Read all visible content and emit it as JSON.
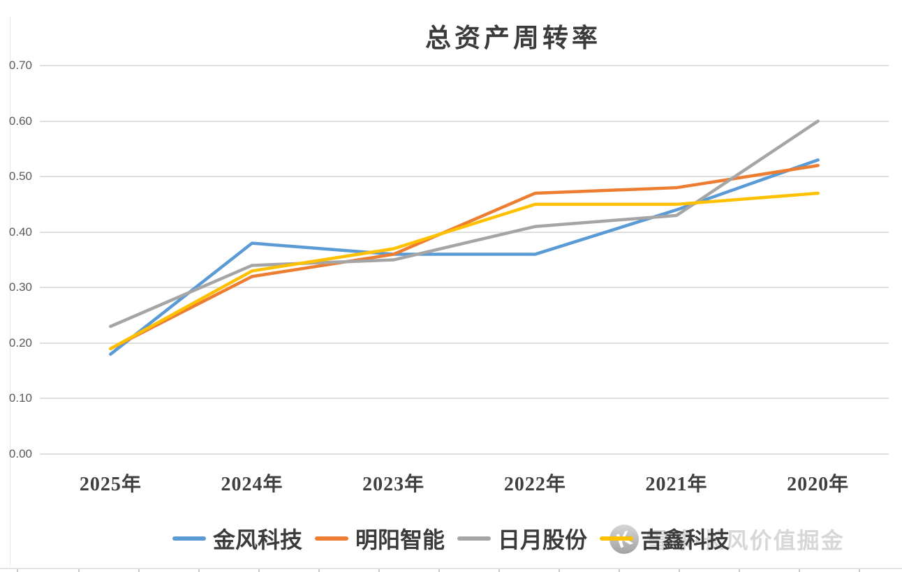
{
  "title": "总资产周转率",
  "chart_data": {
    "type": "line",
    "title": "总资产周转率",
    "categories": [
      "2025年",
      "2024年",
      "2023年",
      "2022年",
      "2021年",
      "2020年"
    ],
    "series": [
      {
        "name": "金风科技",
        "color": "#5B9BD5",
        "values": [
          0.18,
          0.38,
          0.36,
          0.36,
          0.44,
          0.53
        ]
      },
      {
        "name": "明阳智能",
        "color": "#ED7D31",
        "values": [
          0.19,
          0.32,
          0.36,
          0.47,
          0.48,
          0.52
        ]
      },
      {
        "name": "日月股份",
        "color": "#A5A5A5",
        "values": [
          0.23,
          0.34,
          0.35,
          0.41,
          0.43,
          0.6
        ]
      },
      {
        "name": "吉鑫科技",
        "color": "#FFC000",
        "values": [
          0.19,
          0.33,
          0.37,
          0.45,
          0.45,
          0.47
        ]
      }
    ],
    "xlabel": "",
    "ylabel": "",
    "ylim": [
      0.0,
      0.7
    ],
    "y_ticks": [
      "0.70",
      "0.60",
      "0.50",
      "0.40",
      "0.30",
      "0.20",
      "0.10",
      "0.00"
    ],
    "grid": true,
    "legend_position": "bottom"
  },
  "watermark": {
    "logo": "xueqiu-logo",
    "text": "雪球·长风价值掘金"
  }
}
